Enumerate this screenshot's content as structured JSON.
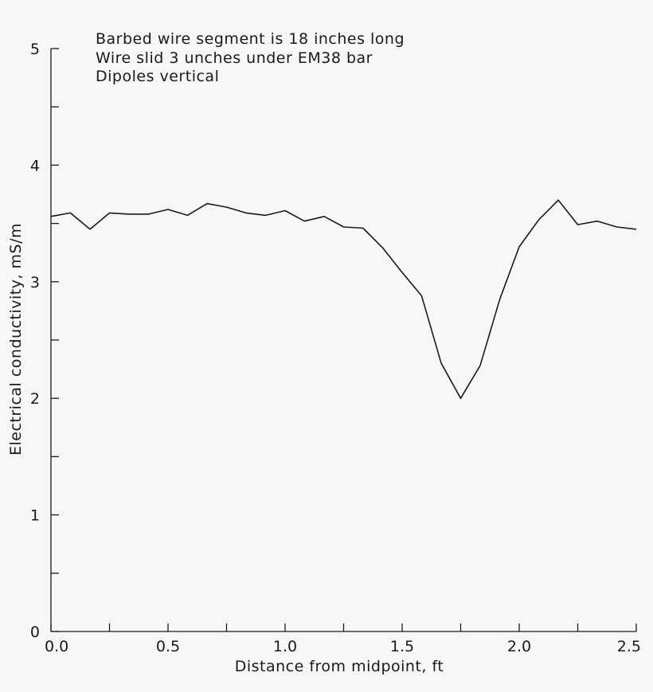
{
  "chart_data": {
    "type": "line",
    "title": "",
    "xlabel": "Distance from midpoint, ft",
    "ylabel": "Electrical conductivity, mS/m",
    "xlim": [
      0.0,
      2.5
    ],
    "ylim": [
      0,
      5
    ],
    "grid": false,
    "x_ticks": [
      0.0,
      0.25,
      0.5,
      0.75,
      1.0,
      1.25,
      1.5,
      1.75,
      2.0,
      2.25,
      2.5
    ],
    "x_tick_labels": [
      "0.0",
      "",
      "0.5",
      "",
      "1.0",
      "",
      "1.5",
      "",
      "2.0",
      "",
      "2.5"
    ],
    "y_ticks": [
      0,
      0.5,
      1,
      1.5,
      2,
      2.5,
      3,
      3.5,
      4,
      4.5,
      5
    ],
    "y_tick_labels": [
      "0",
      "",
      "1",
      "",
      "2",
      "",
      "3",
      "",
      "4",
      "",
      "5"
    ],
    "annotations": [
      "Barbed wire segment is 18 inches long",
      "Wire slid 3 unches under EM38 bar",
      "Dipoles vertical"
    ],
    "series": [
      {
        "x": [
          0.0,
          0.083,
          0.167,
          0.25,
          0.333,
          0.417,
          0.5,
          0.583,
          0.667,
          0.75,
          0.833,
          0.917,
          1.0,
          1.083,
          1.167,
          1.25,
          1.333,
          1.417,
          1.5,
          1.583,
          1.667,
          1.75,
          1.833,
          1.917,
          2.0,
          2.083,
          2.167,
          2.25,
          2.333,
          2.417,
          2.5
        ],
        "y": [
          3.56,
          3.59,
          3.45,
          3.59,
          3.58,
          3.58,
          3.62,
          3.57,
          3.67,
          3.64,
          3.59,
          3.57,
          3.61,
          3.52,
          3.56,
          3.47,
          3.46,
          3.29,
          3.08,
          2.88,
          2.3,
          2.0,
          2.28,
          2.85,
          3.3,
          3.53,
          3.7,
          3.49,
          3.52,
          3.47,
          3.45
        ]
      }
    ]
  }
}
